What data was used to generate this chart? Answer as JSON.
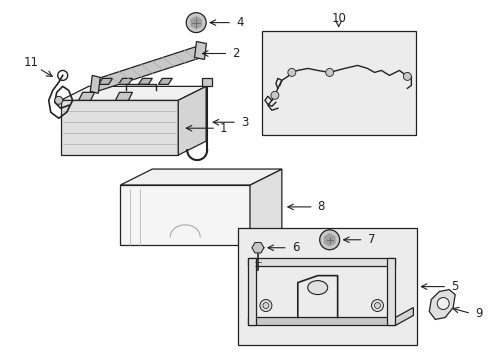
{
  "bg_color": "#ffffff",
  "lc": "#222222",
  "lw": 0.9,
  "gray_light": "#f0f0f0",
  "gray_mid": "#e0e0e0",
  "gray_dark": "#c8c8c8",
  "gray_side": "#d4d4d4",
  "dot_fill": "#888888",
  "box_bg": "#ebebeb",
  "figsize": [
    4.89,
    3.6
  ],
  "dpi": 100
}
